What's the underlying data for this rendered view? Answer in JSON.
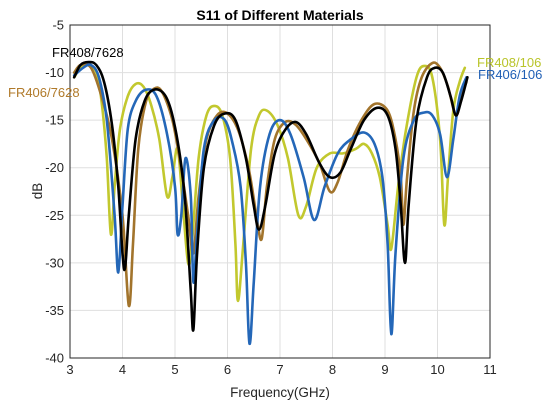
{
  "chart_data": {
    "type": "line",
    "title": "S11 of Different Materials",
    "xlabel": "Frequency(GHz)",
    "ylabel": "dB",
    "xlim": [
      3,
      11
    ],
    "ylim": [
      -40,
      -5
    ],
    "xticks": [
      3,
      4,
      5,
      6,
      7,
      8,
      9,
      10,
      11
    ],
    "yticks": [
      -40,
      -35,
      -30,
      -25,
      -20,
      -15,
      -10,
      -5
    ],
    "grid": true,
    "annotations": [
      {
        "text": "FR408/7628",
        "color": "#000000"
      },
      {
        "text": "FR406/7628",
        "color": "#B07A2A"
      },
      {
        "text": "FR408/106",
        "color": "#B9C42A"
      },
      {
        "text": "FR406/106",
        "color": "#1F5FB5"
      }
    ],
    "series": [
      {
        "name": "FR408/106",
        "color": "#C2C82E",
        "points": [
          [
            3.08,
            -10.5
          ],
          [
            3.2,
            -9.5
          ],
          [
            3.35,
            -9.2
          ],
          [
            3.5,
            -10
          ],
          [
            3.6,
            -13
          ],
          [
            3.7,
            -19
          ],
          [
            3.78,
            -27
          ],
          [
            3.85,
            -22
          ],
          [
            3.95,
            -16
          ],
          [
            4.1,
            -12.5
          ],
          [
            4.25,
            -11.2
          ],
          [
            4.4,
            -11.5
          ],
          [
            4.55,
            -13.5
          ],
          [
            4.7,
            -17
          ],
          [
            4.85,
            -23
          ],
          [
            4.95,
            -21
          ],
          [
            5.05,
            -18
          ],
          [
            5.15,
            -24
          ],
          [
            5.25,
            -30
          ],
          [
            5.32,
            -28
          ],
          [
            5.45,
            -19
          ],
          [
            5.6,
            -14.5
          ],
          [
            5.75,
            -13.5
          ],
          [
            5.9,
            -14.5
          ],
          [
            6.05,
            -19
          ],
          [
            6.15,
            -28
          ],
          [
            6.2,
            -34
          ],
          [
            6.3,
            -28
          ],
          [
            6.45,
            -18
          ],
          [
            6.6,
            -14.5
          ],
          [
            6.75,
            -14
          ],
          [
            6.95,
            -15.5
          ],
          [
            7.15,
            -19
          ],
          [
            7.35,
            -25
          ],
          [
            7.5,
            -24
          ],
          [
            7.7,
            -20
          ],
          [
            7.95,
            -18.5
          ],
          [
            8.2,
            -18.5
          ],
          [
            8.45,
            -18
          ],
          [
            8.6,
            -17.5
          ],
          [
            8.75,
            -18.5
          ],
          [
            8.9,
            -21
          ],
          [
            9.05,
            -26
          ],
          [
            9.12,
            -28.5
          ],
          [
            9.25,
            -22
          ],
          [
            9.4,
            -16
          ],
          [
            9.6,
            -10.5
          ],
          [
            9.75,
            -9.3
          ],
          [
            9.9,
            -10.5
          ],
          [
            10.05,
            -17
          ],
          [
            10.13,
            -26
          ],
          [
            10.2,
            -21
          ],
          [
            10.3,
            -14
          ],
          [
            10.42,
            -11
          ],
          [
            10.52,
            -9.5
          ]
        ]
      },
      {
        "name": "FR406/7628",
        "color": "#A2742C",
        "points": [
          [
            3.08,
            -10
          ],
          [
            3.2,
            -9.2
          ],
          [
            3.4,
            -9.5
          ],
          [
            3.6,
            -12.5
          ],
          [
            3.8,
            -17
          ],
          [
            4,
            -25
          ],
          [
            4.12,
            -34.5
          ],
          [
            4.2,
            -28
          ],
          [
            4.3,
            -18
          ],
          [
            4.45,
            -13
          ],
          [
            4.6,
            -11.7
          ],
          [
            4.75,
            -12
          ],
          [
            4.95,
            -15
          ],
          [
            5.1,
            -19.5
          ],
          [
            5.25,
            -25
          ],
          [
            5.35,
            -29
          ],
          [
            5.45,
            -23
          ],
          [
            5.6,
            -17
          ],
          [
            5.8,
            -14.5
          ],
          [
            6,
            -14.3
          ],
          [
            6.2,
            -16
          ],
          [
            6.4,
            -20
          ],
          [
            6.55,
            -25
          ],
          [
            6.65,
            -27.5
          ],
          [
            6.75,
            -22
          ],
          [
            6.9,
            -17
          ],
          [
            7.1,
            -15.2
          ],
          [
            7.3,
            -15.5
          ],
          [
            7.5,
            -17
          ],
          [
            7.75,
            -19.5
          ],
          [
            7.95,
            -22.5
          ],
          [
            8.1,
            -21.5
          ],
          [
            8.3,
            -18
          ],
          [
            8.55,
            -15
          ],
          [
            8.8,
            -13.3
          ],
          [
            9.05,
            -14
          ],
          [
            9.2,
            -17
          ],
          [
            9.3,
            -21
          ],
          [
            9.35,
            -26
          ],
          [
            9.42,
            -21
          ],
          [
            9.55,
            -14
          ],
          [
            9.7,
            -10.5
          ],
          [
            9.9,
            -9
          ],
          [
            10.05,
            -9.5
          ],
          [
            10.2,
            -11.5
          ],
          [
            10.35,
            -14.5
          ],
          [
            10.45,
            -12.5
          ],
          [
            10.55,
            -11
          ]
        ]
      },
      {
        "name": "FR406/106",
        "color": "#2467B8",
        "points": [
          [
            3.08,
            -10.3
          ],
          [
            3.25,
            -9.5
          ],
          [
            3.4,
            -9.2
          ],
          [
            3.55,
            -10.5
          ],
          [
            3.7,
            -15
          ],
          [
            3.85,
            -25
          ],
          [
            3.92,
            -31
          ],
          [
            4,
            -24
          ],
          [
            4.1,
            -16
          ],
          [
            4.25,
            -13
          ],
          [
            4.45,
            -11.8
          ],
          [
            4.65,
            -12.5
          ],
          [
            4.85,
            -16.5
          ],
          [
            5,
            -22
          ],
          [
            5.05,
            -27
          ],
          [
            5.12,
            -25
          ],
          [
            5.2,
            -19
          ],
          [
            5.3,
            -23
          ],
          [
            5.35,
            -32
          ],
          [
            5.42,
            -27
          ],
          [
            5.55,
            -18
          ],
          [
            5.75,
            -15
          ],
          [
            5.95,
            -15
          ],
          [
            6.1,
            -17.5
          ],
          [
            6.25,
            -22
          ],
          [
            6.35,
            -30
          ],
          [
            6.42,
            -38.5
          ],
          [
            6.5,
            -32
          ],
          [
            6.62,
            -22
          ],
          [
            6.8,
            -16.5
          ],
          [
            7,
            -15
          ],
          [
            7.2,
            -16.5
          ],
          [
            7.45,
            -21
          ],
          [
            7.65,
            -25.5
          ],
          [
            7.85,
            -22
          ],
          [
            8.1,
            -18.5
          ],
          [
            8.35,
            -17
          ],
          [
            8.6,
            -16.3
          ],
          [
            8.8,
            -17.5
          ],
          [
            8.95,
            -21
          ],
          [
            9.05,
            -28
          ],
          [
            9.12,
            -37.5
          ],
          [
            9.2,
            -29
          ],
          [
            9.35,
            -19
          ],
          [
            9.55,
            -15
          ],
          [
            9.75,
            -14.2
          ],
          [
            9.9,
            -14.5
          ],
          [
            10.05,
            -16.5
          ],
          [
            10.18,
            -21
          ],
          [
            10.3,
            -17
          ],
          [
            10.42,
            -12.5
          ],
          [
            10.55,
            -10.5
          ]
        ]
      },
      {
        "name": "FR408/7628",
        "color": "#000000",
        "points": [
          [
            3.08,
            -10.5
          ],
          [
            3.2,
            -9.2
          ],
          [
            3.35,
            -8.9
          ],
          [
            3.5,
            -9.2
          ],
          [
            3.65,
            -11
          ],
          [
            3.8,
            -15.5
          ],
          [
            3.92,
            -22
          ],
          [
            4,
            -29
          ],
          [
            4.05,
            -30.5
          ],
          [
            4.12,
            -25
          ],
          [
            4.25,
            -17
          ],
          [
            4.42,
            -13
          ],
          [
            4.6,
            -11.8
          ],
          [
            4.8,
            -12.3
          ],
          [
            4.95,
            -14.5
          ],
          [
            5.1,
            -19
          ],
          [
            5.2,
            -24
          ],
          [
            5.3,
            -33
          ],
          [
            5.35,
            -37
          ],
          [
            5.42,
            -29
          ],
          [
            5.55,
            -20
          ],
          [
            5.75,
            -15.5
          ],
          [
            5.95,
            -14.3
          ],
          [
            6.15,
            -15
          ],
          [
            6.35,
            -19
          ],
          [
            6.5,
            -24
          ],
          [
            6.6,
            -26.5
          ],
          [
            6.72,
            -24
          ],
          [
            6.9,
            -18.5
          ],
          [
            7.1,
            -16
          ],
          [
            7.3,
            -15.2
          ],
          [
            7.5,
            -16.5
          ],
          [
            7.75,
            -19.5
          ],
          [
            7.95,
            -21
          ],
          [
            8.15,
            -20.5
          ],
          [
            8.35,
            -18
          ],
          [
            8.6,
            -15
          ],
          [
            8.85,
            -13.7
          ],
          [
            9.05,
            -14.5
          ],
          [
            9.2,
            -18
          ],
          [
            9.3,
            -24
          ],
          [
            9.38,
            -30
          ],
          [
            9.45,
            -24
          ],
          [
            9.6,
            -15
          ],
          [
            9.8,
            -10.5
          ],
          [
            9.95,
            -9.5
          ],
          [
            10.1,
            -10
          ],
          [
            10.25,
            -12.5
          ],
          [
            10.35,
            -14.5
          ],
          [
            10.45,
            -13
          ],
          [
            10.57,
            -10.5
          ]
        ]
      }
    ]
  }
}
